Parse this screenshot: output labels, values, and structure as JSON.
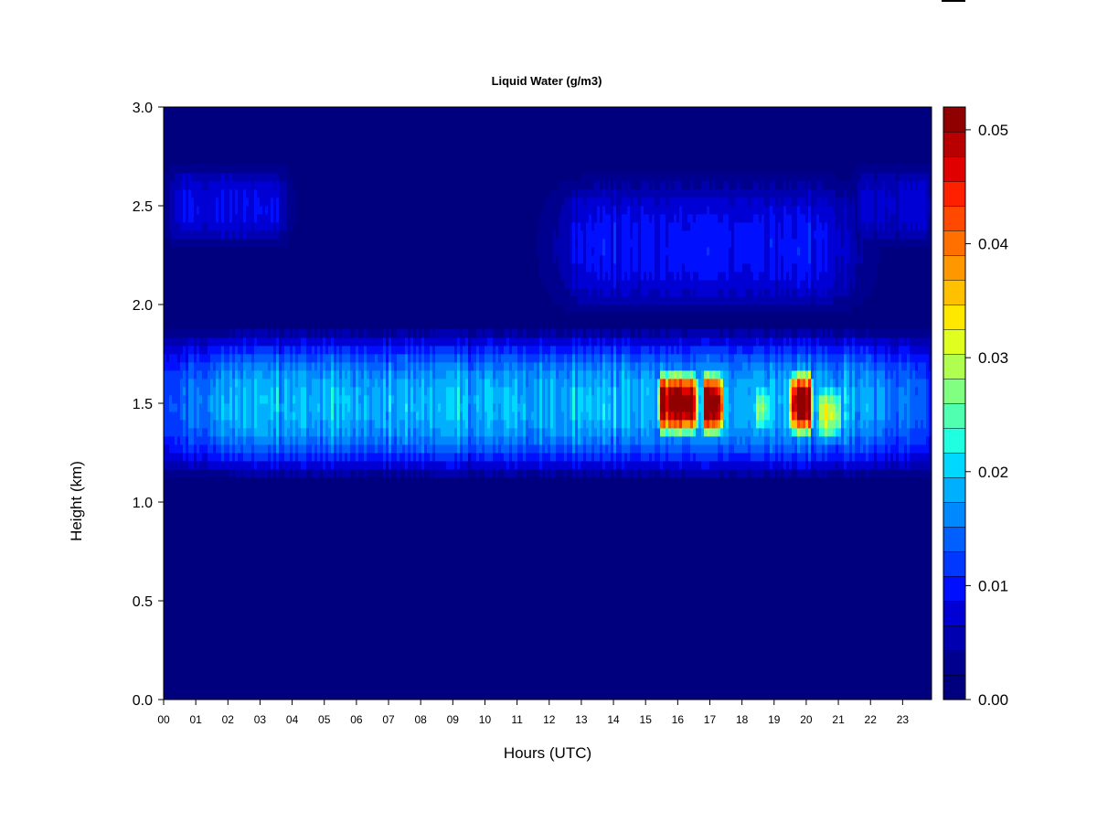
{
  "chart_data": {
    "type": "heatmap",
    "title": "Liquid Water (g/m3)",
    "xlabel": "Hours (UTC)",
    "ylabel": "Height (km)",
    "x_ticks": [
      "00",
      "01",
      "02",
      "03",
      "04",
      "05",
      "06",
      "07",
      "08",
      "09",
      "10",
      "11",
      "12",
      "13",
      "14",
      "15",
      "16",
      "17",
      "18",
      "19",
      "20",
      "21",
      "22",
      "23"
    ],
    "y_ticks": [
      "0.0",
      "0.5",
      "1.0",
      "1.5",
      "2.0",
      "2.5",
      "3.0"
    ],
    "xlim": [
      0,
      23.9
    ],
    "ylim": [
      0,
      3.0
    ],
    "colorbar": {
      "range": [
        0,
        0.052
      ],
      "ticks": [
        "0.00",
        "0.01",
        "0.02",
        "0.03",
        "0.04",
        "0.05"
      ],
      "levels": [
        "#00007f",
        "#00008f",
        "#0000b0",
        "#0000d5",
        "#0010ff",
        "#0038ff",
        "#0060ff",
        "#0088ff",
        "#00b0ff",
        "#00d8ff",
        "#20ffe0",
        "#50ffb0",
        "#80ff80",
        "#b0ff50",
        "#e0ff20",
        "#ffe800",
        "#ffc000",
        "#ff9800",
        "#ff7000",
        "#ff4800",
        "#ff2000",
        "#e00000",
        "#b80000",
        "#900000"
      ]
    },
    "features": [
      {
        "name": "main cloud layer",
        "hours": [
          0,
          23.9
        ],
        "height_km": [
          1.1,
          1.9
        ],
        "peak_value": 0.018
      },
      {
        "name": "upper layer patches",
        "hours": [
          0.2,
          3.8
        ],
        "height_km": [
          2.25,
          2.75
        ],
        "peak_value": 0.008
      },
      {
        "name": "upper layer",
        "hours": [
          12.4,
          21.5
        ],
        "height_km": [
          1.9,
          2.7
        ],
        "peak_value": 0.009
      },
      {
        "name": "upper layer",
        "hours": [
          21.5,
          23.9
        ],
        "height_km": [
          2.25,
          2.75
        ],
        "peak_value": 0.007
      },
      {
        "name": "core",
        "hours": [
          15.4,
          16.6
        ],
        "height_km": [
          1.3,
          1.7
        ],
        "peak_value": 0.05
      },
      {
        "name": "core",
        "hours": [
          16.8,
          17.4
        ],
        "height_km": [
          1.3,
          1.7
        ],
        "peak_value": 0.048
      },
      {
        "name": "core",
        "hours": [
          19.5,
          20.2
        ],
        "height_km": [
          1.3,
          1.7
        ],
        "peak_value": 0.048
      },
      {
        "name": "core",
        "hours": [
          20.4,
          21.1
        ],
        "height_km": [
          1.25,
          1.65
        ],
        "peak_value": 0.03
      },
      {
        "name": "core",
        "hours": [
          18.4,
          18.9
        ],
        "height_km": [
          1.3,
          1.65
        ],
        "peak_value": 0.026
      }
    ]
  }
}
